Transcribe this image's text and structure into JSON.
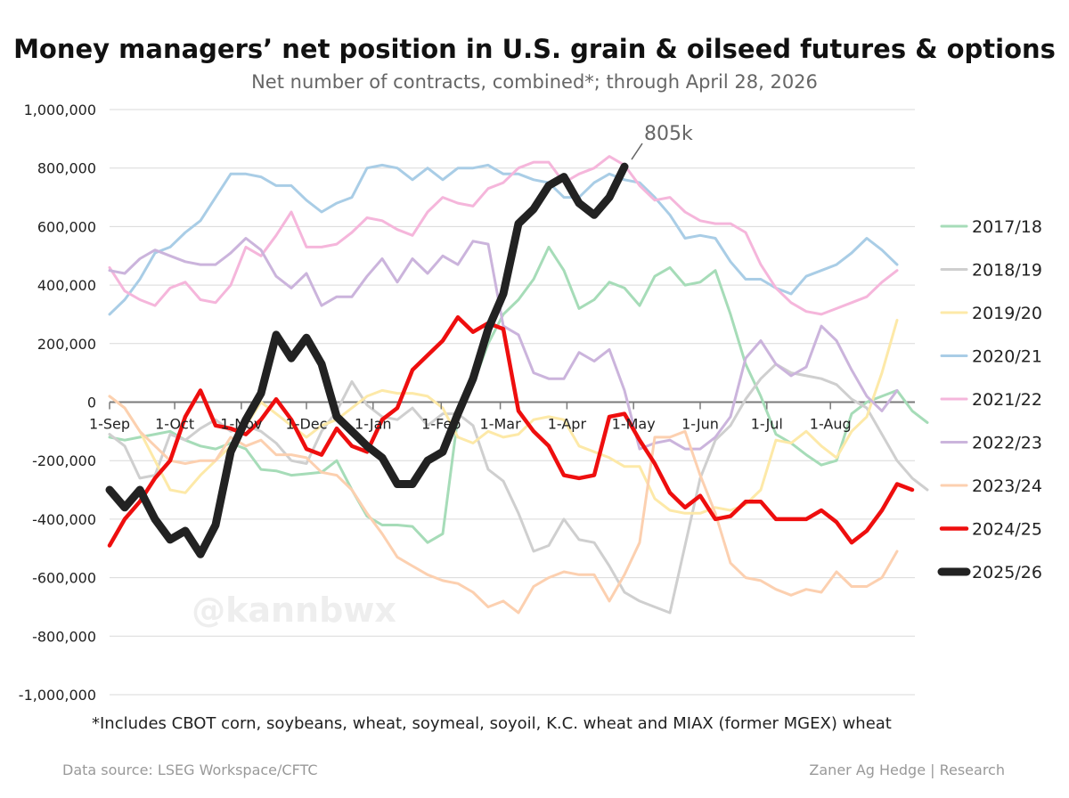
{
  "title": "Money managers’ net position in U.S. grain & oilseed futures & options",
  "subtitle": "Net number of contracts, combined*; through April 28, 2026",
  "footnote": "*Includes CBOT corn, soybeans, wheat, soymeal, soyoil, K.C. wheat and MIAX (former MGEX) wheat",
  "source": "Data source: LSEG Workspace/CFTC",
  "credit": "Zaner Ag Hedge | Research",
  "watermark": "@kannbwx",
  "chart_data": {
    "type": "line",
    "title": "Money managers’ net position in U.S. grain & oilseed futures & options",
    "subtitle": "Net number of contracts, combined*; through April 28, 2026",
    "ylim": [
      -1000000,
      1000000
    ],
    "y_ticks": [
      "1,000,000",
      "800,000",
      "600,000",
      "400,000",
      "200,000",
      "0",
      "-200,000",
      "-400,000",
      "-600,000",
      "-800,000",
      "-1,000,000"
    ],
    "x_tick_labels": [
      "1-Sep",
      "1-Oct",
      "1-Nov",
      "1-Dec",
      "1-Jan",
      "1-Feb",
      "1-Mar",
      "1-Apr",
      "1-May",
      "1-Jun",
      "1-Jul",
      "1-Aug"
    ],
    "x_unit": "week index starting 1-Sep",
    "legend_position": "right",
    "grid": true,
    "annotation": "805k",
    "series": [
      {
        "name": "2017/18",
        "color": "#a6dcb8",
        "width": 3,
        "values": [
          -120000,
          -130000,
          -120000,
          -110000,
          -100000,
          -130000,
          -150000,
          -160000,
          -140000,
          -160000,
          -230000,
          -235000,
          -250000,
          -245000,
          -240000,
          -200000,
          -300000,
          -390000,
          -420000,
          -420000,
          -425000,
          -480000,
          -450000,
          -50000,
          60000,
          200000,
          300000,
          350000,
          420000,
          530000,
          450000,
          320000,
          350000,
          410000,
          390000,
          330000,
          430000,
          460000,
          400000,
          410000,
          450000,
          300000,
          130000,
          20000,
          -110000,
          -140000,
          -180000,
          -215000,
          -200000,
          -40000,
          0,
          20000,
          40000,
          -30000,
          -70000
        ]
      },
      {
        "name": "2018/19",
        "color": "#cfcfcf",
        "width": 3,
        "values": [
          -110000,
          -150000,
          -260000,
          -250000,
          -110000,
          -130000,
          -90000,
          -60000,
          -100000,
          -80000,
          -100000,
          -140000,
          -200000,
          -210000,
          -100000,
          -30000,
          70000,
          -10000,
          -50000,
          -60000,
          -20000,
          -80000,
          -40000,
          -40000,
          -80000,
          -230000,
          -270000,
          -380000,
          -510000,
          -490000,
          -400000,
          -470000,
          -480000,
          -560000,
          -650000,
          -680000,
          -700000,
          -720000,
          -490000,
          -260000,
          -130000,
          -80000,
          10000,
          80000,
          130000,
          100000,
          90000,
          80000,
          60000,
          10000,
          -20000,
          -110000,
          -200000,
          -260000,
          -300000
        ]
      },
      {
        "name": "2019/20",
        "color": "#fde9a8",
        "width": 3,
        "values": [
          20000,
          -20000,
          -100000,
          -200000,
          -300000,
          -310000,
          -250000,
          -200000,
          -150000,
          -80000,
          0,
          -40000,
          -80000,
          -120000,
          -80000,
          -60000,
          -20000,
          20000,
          40000,
          30000,
          30000,
          20000,
          -20000,
          -120000,
          -140000,
          -100000,
          -120000,
          -110000,
          -60000,
          -50000,
          -60000,
          -150000,
          -170000,
          -190000,
          -220000,
          -220000,
          -330000,
          -370000,
          -380000,
          -380000,
          -360000,
          -370000,
          -350000,
          -300000,
          -130000,
          -140000,
          -100000,
          -150000,
          -190000,
          -100000,
          -50000,
          100000,
          280000
        ]
      },
      {
        "name": "2020/21",
        "color": "#a9cde6",
        "width": 3,
        "values": [
          300000,
          350000,
          420000,
          510000,
          530000,
          580000,
          620000,
          700000,
          780000,
          780000,
          770000,
          740000,
          740000,
          690000,
          650000,
          680000,
          700000,
          800000,
          810000,
          800000,
          760000,
          800000,
          760000,
          800000,
          800000,
          810000,
          780000,
          780000,
          760000,
          750000,
          700000,
          700000,
          750000,
          780000,
          760000,
          750000,
          700000,
          640000,
          560000,
          570000,
          560000,
          480000,
          420000,
          420000,
          390000,
          370000,
          430000,
          450000,
          470000,
          510000,
          560000,
          520000,
          470000
        ]
      },
      {
        "name": "2021/22",
        "color": "#f5b6db",
        "width": 3,
        "values": [
          460000,
          380000,
          350000,
          330000,
          390000,
          410000,
          350000,
          340000,
          400000,
          530000,
          500000,
          570000,
          650000,
          530000,
          530000,
          540000,
          580000,
          630000,
          620000,
          590000,
          570000,
          650000,
          700000,
          680000,
          670000,
          730000,
          750000,
          800000,
          820000,
          820000,
          750000,
          780000,
          800000,
          840000,
          810000,
          740000,
          690000,
          700000,
          650000,
          620000,
          610000,
          610000,
          580000,
          470000,
          390000,
          340000,
          310000,
          300000,
          320000,
          340000,
          360000,
          410000,
          450000
        ]
      },
      {
        "name": "2022/23",
        "color": "#cbb4dc",
        "width": 3,
        "values": [
          450000,
          440000,
          490000,
          520000,
          500000,
          480000,
          470000,
          470000,
          510000,
          560000,
          520000,
          430000,
          390000,
          440000,
          330000,
          360000,
          360000,
          430000,
          490000,
          410000,
          490000,
          440000,
          500000,
          470000,
          550000,
          540000,
          260000,
          230000,
          100000,
          80000,
          80000,
          170000,
          140000,
          180000,
          40000,
          -160000,
          -140000,
          -130000,
          -160000,
          -160000,
          -120000,
          -50000,
          150000,
          210000,
          130000,
          90000,
          120000,
          260000,
          210000,
          110000,
          20000,
          -30000,
          40000
        ]
      },
      {
        "name": "2023/24",
        "color": "#fcd0b0",
        "width": 3,
        "values": [
          20000,
          -20000,
          -100000,
          -150000,
          -200000,
          -210000,
          -200000,
          -200000,
          -120000,
          -150000,
          -130000,
          -180000,
          -180000,
          -190000,
          -240000,
          -250000,
          -300000,
          -380000,
          -450000,
          -530000,
          -560000,
          -590000,
          -610000,
          -620000,
          -650000,
          -700000,
          -680000,
          -720000,
          -630000,
          -600000,
          -580000,
          -590000,
          -590000,
          -680000,
          -590000,
          -480000,
          -120000,
          -120000,
          -100000,
          -250000,
          -380000,
          -550000,
          -600000,
          -610000,
          -640000,
          -660000,
          -640000,
          -650000,
          -580000,
          -630000,
          -630000,
          -600000,
          -510000
        ]
      },
      {
        "name": "2024/25",
        "color": "#ee0e0e",
        "width": 4.5,
        "values": [
          -490000,
          -400000,
          -340000,
          -260000,
          -200000,
          -50000,
          40000,
          -80000,
          -90000,
          -110000,
          -60000,
          10000,
          -60000,
          -160000,
          -180000,
          -90000,
          -150000,
          -170000,
          -60000,
          -20000,
          110000,
          160000,
          210000,
          290000,
          240000,
          270000,
          250000,
          -30000,
          -100000,
          -150000,
          -250000,
          -260000,
          -250000,
          -50000,
          -40000,
          -130000,
          -210000,
          -310000,
          -360000,
          -320000,
          -400000,
          -390000,
          -340000,
          -340000,
          -400000,
          -400000,
          -400000,
          -370000,
          -410000,
          -480000,
          -440000,
          -370000,
          -280000,
          -300000
        ]
      },
      {
        "name": "2025/26",
        "color": "#222222",
        "width": 9,
        "values": [
          -300000,
          -360000,
          -300000,
          -400000,
          -470000,
          -440000,
          -520000,
          -420000,
          -170000,
          -60000,
          30000,
          230000,
          150000,
          220000,
          130000,
          -50000,
          -100000,
          -150000,
          -190000,
          -280000,
          -280000,
          -200000,
          -170000,
          -40000,
          80000,
          250000,
          370000,
          610000,
          660000,
          740000,
          770000,
          680000,
          640000,
          700000,
          805000
        ]
      }
    ]
  }
}
